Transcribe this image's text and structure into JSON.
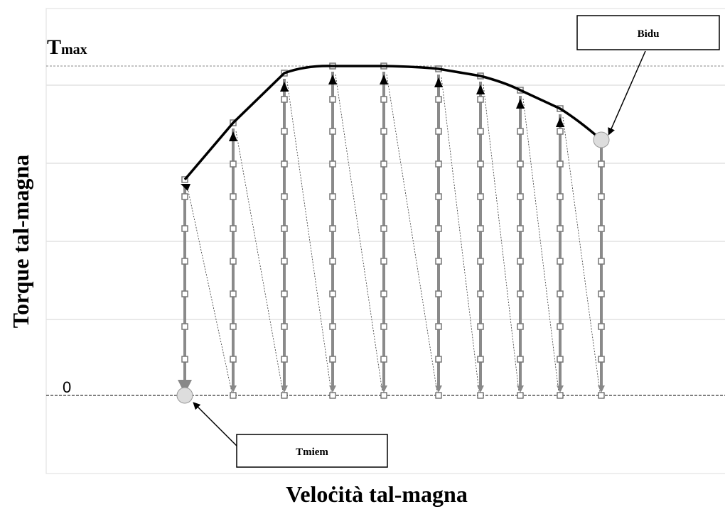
{
  "axes": {
    "y_label": "Torque tal-magna",
    "x_label": "Veloċità tal-magna"
  },
  "levels": {
    "max": {
      "main": "T",
      "sub": "max"
    },
    "zero": "0"
  },
  "callouts": {
    "end": "Bidu",
    "start": "Tmiem"
  }
}
